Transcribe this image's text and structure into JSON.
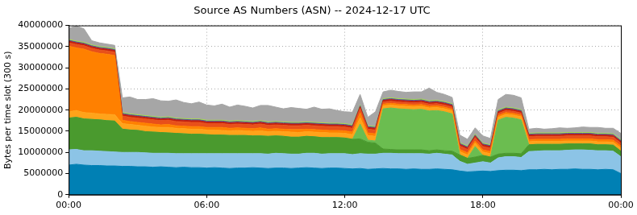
{
  "chart_data": {
    "type": "area",
    "title": "Source AS Numbers (ASN) -- 2024-12-17 UTC",
    "y_label": "Bytes per time slot (300 s)",
    "stacked": true,
    "grid": true,
    "xlim": [
      0,
      1440
    ],
    "xticks": [
      {
        "value": 0,
        "label": "00:00"
      },
      {
        "value": 360,
        "label": "06:00"
      },
      {
        "value": 720,
        "label": "12:00"
      },
      {
        "value": 1080,
        "label": "18:00"
      },
      {
        "value": 1440,
        "label": "00:00"
      }
    ],
    "ylim": [
      0,
      40000000
    ],
    "yticks": [
      0,
      5000000,
      10000000,
      15000000,
      20000000,
      25000000,
      30000000,
      35000000,
      40000000
    ],
    "x": [
      0,
      20,
      40,
      60,
      80,
      100,
      120,
      140,
      160,
      180,
      200,
      220,
      240,
      260,
      280,
      300,
      320,
      340,
      360,
      380,
      400,
      420,
      440,
      460,
      480,
      500,
      520,
      540,
      560,
      580,
      600,
      620,
      640,
      660,
      680,
      700,
      720,
      740,
      760,
      780,
      800,
      820,
      840,
      860,
      880,
      900,
      920,
      940,
      960,
      980,
      1000,
      1020,
      1040,
      1060,
      1080,
      1100,
      1120,
      1140,
      1160,
      1180,
      1200,
      1220,
      1240,
      1260,
      1280,
      1300,
      1320,
      1340,
      1360,
      1380,
      1400,
      1420,
      1440
    ],
    "series": [
      {
        "color": "#0080b4",
        "values": [
          7000000,
          7200000,
          7000000,
          6900000,
          6900000,
          6800000,
          6800000,
          6700000,
          6700000,
          6600000,
          6600000,
          6500000,
          6600000,
          6500000,
          6400000,
          6500000,
          6400000,
          6400000,
          6300000,
          6400000,
          6300000,
          6200000,
          6300000,
          6300000,
          6400000,
          6300000,
          6200000,
          6300000,
          6300000,
          6200000,
          6300000,
          6400000,
          6300000,
          6200000,
          6300000,
          6300000,
          6200000,
          6100000,
          6200000,
          6000000,
          6100000,
          6200000,
          6100000,
          6100000,
          6000000,
          6100000,
          6000000,
          6000000,
          6100000,
          6000000,
          5900000,
          5600000,
          5400000,
          5500000,
          5600000,
          5500000,
          5700000,
          5800000,
          5800000,
          5700000,
          5900000,
          5900000,
          6000000,
          5900000,
          6000000,
          6000000,
          6100000,
          6000000,
          6000000,
          5900000,
          6000000,
          5900000,
          5000000
        ]
      },
      {
        "color": "#8cc4e6",
        "values": [
          3600000,
          3500000,
          3400000,
          3500000,
          3400000,
          3400000,
          3300000,
          3300000,
          3300000,
          3400000,
          3300000,
          3300000,
          3200000,
          3300000,
          3300000,
          3200000,
          3300000,
          3300000,
          3400000,
          3300000,
          3400000,
          3500000,
          3400000,
          3400000,
          3300000,
          3400000,
          3400000,
          3500000,
          3400000,
          3400000,
          3300000,
          3400000,
          3500000,
          3400000,
          3400000,
          3400000,
          3500000,
          3400000,
          3500000,
          3600000,
          3500000,
          3600000,
          3700000,
          3600000,
          3700000,
          3600000,
          3700000,
          3600000,
          3700000,
          3600000,
          3500000,
          2300000,
          1800000,
          2000000,
          2200000,
          2000000,
          3000000,
          3200000,
          3200000,
          3100000,
          4300000,
          4400000,
          4400000,
          4500000,
          4400000,
          4500000,
          4500000,
          4600000,
          4500000,
          4500000,
          4400000,
          4400000,
          4000000
        ]
      },
      {
        "color": "#4a9a2e",
        "values": [
          7500000,
          7600000,
          7500000,
          7400000,
          7400000,
          7300000,
          7300000,
          5500000,
          5300000,
          5200000,
          5000000,
          5000000,
          4900000,
          4800000,
          4800000,
          4700000,
          4600000,
          4600000,
          4500000,
          4400000,
          4400000,
          4300000,
          4300000,
          4300000,
          4200000,
          4200000,
          4200000,
          4100000,
          4100000,
          4000000,
          4000000,
          4000000,
          3900000,
          3900000,
          3800000,
          3800000,
          3700000,
          3600000,
          3500000,
          2800000,
          2600000,
          1000000,
          900000,
          900000,
          900000,
          900000,
          900000,
          800000,
          800000,
          800000,
          900000,
          1500000,
          1400000,
          1400000,
          1500000,
          1400000,
          900000,
          800000,
          800000,
          900000,
          1600000,
          1600000,
          1500000,
          1500000,
          1500000,
          1500000,
          1400000,
          1400000,
          1500000,
          1400000,
          1400000,
          1400000,
          1300000
        ]
      },
      {
        "color": "#6bbd50",
        "values": [
          0,
          0,
          0,
          0,
          0,
          0,
          0,
          0,
          0,
          0,
          0,
          0,
          0,
          0,
          0,
          0,
          0,
          0,
          0,
          0,
          0,
          0,
          0,
          0,
          0,
          0,
          0,
          0,
          0,
          0,
          0,
          0,
          0,
          0,
          0,
          0,
          0,
          0,
          3500000,
          500000,
          500000,
          9500000,
          9800000,
          9700000,
          9600000,
          9500000,
          9600000,
          9400000,
          9300000,
          9200000,
          8800000,
          0,
          0,
          2500000,
          0,
          0,
          8000000,
          8500000,
          8300000,
          8000000,
          0,
          0,
          0,
          0,
          0,
          0,
          0,
          0,
          0,
          0,
          0,
          0,
          0
        ]
      },
      {
        "color": "#ffa31a",
        "values": [
          1500000,
          1600000,
          1500000,
          1500000,
          1400000,
          1500000,
          1500000,
          1300000,
          1300000,
          1200000,
          1300000,
          1200000,
          1200000,
          1300000,
          1200000,
          1200000,
          1200000,
          1200000,
          1100000,
          1200000,
          1100000,
          1100000,
          1200000,
          1100000,
          1100000,
          1200000,
          1100000,
          1100000,
          1100000,
          1200000,
          1100000,
          1100000,
          1100000,
          1200000,
          1100000,
          1100000,
          1100000,
          1100000,
          1500000,
          1100000,
          1100000,
          700000,
          700000,
          700000,
          700000,
          700000,
          700000,
          700000,
          700000,
          700000,
          700000,
          800000,
          800000,
          800000,
          800000,
          800000,
          700000,
          700000,
          700000,
          700000,
          700000,
          700000,
          700000,
          700000,
          700000,
          700000,
          700000,
          700000,
          700000,
          700000,
          700000,
          700000,
          700000
        ]
      },
      {
        "color": "#ff8000",
        "values": [
          15500000,
          14800000,
          15000000,
          14500000,
          14300000,
          14200000,
          14000000,
          800000,
          700000,
          700000,
          700000,
          700000,
          600000,
          700000,
          600000,
          600000,
          600000,
          600000,
          600000,
          600000,
          700000,
          600000,
          600000,
          600000,
          600000,
          700000,
          600000,
          600000,
          600000,
          600000,
          700000,
          600000,
          600000,
          600000,
          600000,
          600000,
          600000,
          600000,
          1200000,
          600000,
          600000,
          400000,
          400000,
          400000,
          400000,
          400000,
          400000,
          400000,
          400000,
          400000,
          400000,
          500000,
          500000,
          500000,
          500000,
          500000,
          400000,
          400000,
          400000,
          400000,
          500000,
          500000,
          500000,
          500000,
          500000,
          500000,
          500000,
          500000,
          500000,
          500000,
          500000,
          500000,
          500000
        ]
      },
      {
        "color": "#e8501a",
        "values": [
          800000,
          800000,
          800000,
          800000,
          800000,
          800000,
          800000,
          1000000,
          1000000,
          1000000,
          1000000,
          1000000,
          1000000,
          1000000,
          1000000,
          1000000,
          1000000,
          1000000,
          900000,
          900000,
          900000,
          900000,
          900000,
          900000,
          900000,
          900000,
          900000,
          900000,
          900000,
          900000,
          900000,
          900000,
          900000,
          900000,
          900000,
          900000,
          900000,
          900000,
          1000000,
          900000,
          900000,
          500000,
          500000,
          500000,
          500000,
          500000,
          500000,
          500000,
          500000,
          500000,
          500000,
          800000,
          800000,
          800000,
          800000,
          800000,
          500000,
          500000,
          500000,
          500000,
          700000,
          700000,
          700000,
          700000,
          700000,
          700000,
          700000,
          700000,
          700000,
          700000,
          700000,
          700000,
          700000
        ]
      },
      {
        "color": "#c02010",
        "values": [
          400000,
          400000,
          400000,
          400000,
          400000,
          400000,
          400000,
          400000,
          400000,
          400000,
          400000,
          400000,
          400000,
          400000,
          400000,
          400000,
          400000,
          400000,
          400000,
          400000,
          400000,
          400000,
          400000,
          400000,
          400000,
          400000,
          400000,
          400000,
          400000,
          400000,
          400000,
          400000,
          400000,
          400000,
          400000,
          400000,
          400000,
          400000,
          400000,
          400000,
          400000,
          400000,
          400000,
          400000,
          400000,
          400000,
          400000,
          400000,
          400000,
          400000,
          400000,
          400000,
          400000,
          400000,
          400000,
          400000,
          400000,
          400000,
          400000,
          400000,
          400000,
          400000,
          400000,
          400000,
          400000,
          400000,
          400000,
          400000,
          400000,
          400000,
          400000,
          400000,
          400000
        ]
      },
      {
        "color": "#4a5aa0",
        "values": [
          200000,
          200000,
          200000,
          200000,
          200000,
          200000,
          200000,
          200000,
          200000,
          200000,
          200000,
          200000,
          200000,
          200000,
          200000,
          200000,
          200000,
          200000,
          200000,
          200000,
          200000,
          200000,
          200000,
          200000,
          200000,
          200000,
          200000,
          200000,
          200000,
          200000,
          200000,
          200000,
          200000,
          200000,
          200000,
          200000,
          200000,
          200000,
          200000,
          200000,
          200000,
          200000,
          200000,
          200000,
          200000,
          200000,
          200000,
          200000,
          200000,
          200000,
          200000,
          200000,
          200000,
          200000,
          200000,
          200000,
          200000,
          200000,
          200000,
          200000,
          200000,
          200000,
          200000,
          200000,
          200000,
          200000,
          200000,
          200000,
          200000,
          200000,
          200000,
          200000,
          200000
        ]
      },
      {
        "color": "#a8d848",
        "values": [
          200000,
          200000,
          200000,
          200000,
          200000,
          200000,
          200000,
          200000,
          200000,
          200000,
          200000,
          200000,
          200000,
          200000,
          200000,
          200000,
          200000,
          200000,
          200000,
          200000,
          200000,
          200000,
          200000,
          200000,
          200000,
          200000,
          200000,
          200000,
          200000,
          200000,
          200000,
          200000,
          200000,
          200000,
          200000,
          200000,
          200000,
          200000,
          200000,
          200000,
          200000,
          200000,
          200000,
          200000,
          200000,
          200000,
          200000,
          200000,
          200000,
          200000,
          200000,
          200000,
          200000,
          200000,
          200000,
          200000,
          200000,
          200000,
          200000,
          200000,
          200000,
          200000,
          200000,
          200000,
          200000,
          200000,
          200000,
          200000,
          200000,
          200000,
          200000,
          200000,
          200000
        ]
      },
      {
        "color": "#a6a6a6",
        "values": [
          2600000,
          3600000,
          3200000,
          1000000,
          900000,
          800000,
          800000,
          3500000,
          4000000,
          3600000,
          3800000,
          4200000,
          3900000,
          3700000,
          4300000,
          3800000,
          3600000,
          4000000,
          3600000,
          3400000,
          3800000,
          3300000,
          3700000,
          3500000,
          3200000,
          3600000,
          3900000,
          3400000,
          3100000,
          3500000,
          3300000,
          3000000,
          3600000,
          3200000,
          3400000,
          3000000,
          2800000,
          3000000,
          2500000,
          2000000,
          3500000,
          1600000,
          1800000,
          1700000,
          1600000,
          1800000,
          1700000,
          3000000,
          1900000,
          1700000,
          1500000,
          1800000,
          1600000,
          1500000,
          1700000,
          1500000,
          2500000,
          3000000,
          3000000,
          2800000,
          1000000,
          1100000,
          900000,
          1000000,
          1200000,
          1000000,
          1100000,
          1300000,
          1200000,
          1400000,
          1200000,
          1300000,
          1500000
        ]
      }
    ]
  }
}
